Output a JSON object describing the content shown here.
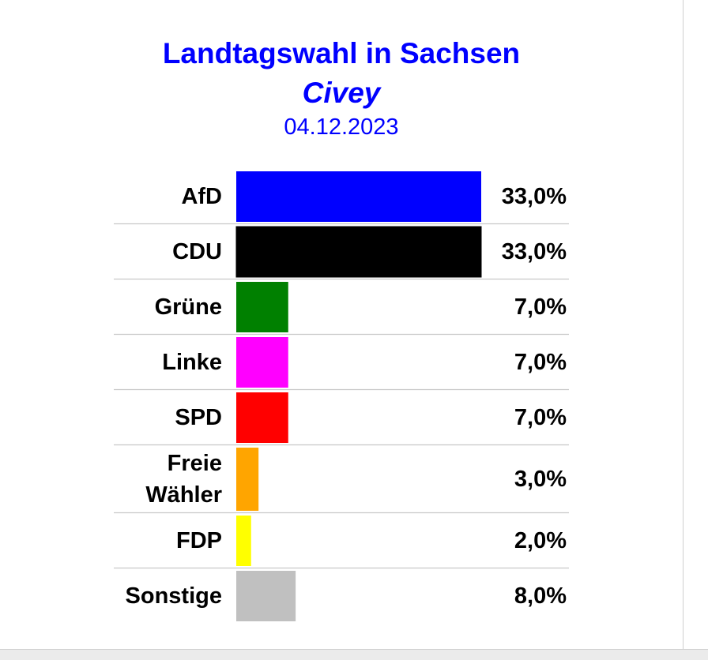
{
  "header": {
    "title": "Landtagswahl in Sachsen",
    "subtitle": "Civey",
    "date": "04.12.2023"
  },
  "chart_data": {
    "type": "bar",
    "orientation": "horizontal",
    "title": "Landtagswahl in Sachsen",
    "subtitle": "Civey",
    "date": "04.12.2023",
    "categories": [
      "AfD",
      "CDU",
      "Grüne",
      "Linke",
      "SPD",
      "Freie Wähler",
      "FDP",
      "Sonstige"
    ],
    "category_lines": [
      [
        "AfD"
      ],
      [
        "CDU"
      ],
      [
        "Grüne"
      ],
      [
        "Linke"
      ],
      [
        "SPD"
      ],
      [
        "Freie",
        "Wähler"
      ],
      [
        "FDP"
      ],
      [
        "Sonstige"
      ]
    ],
    "values": [
      33.0,
      33.0,
      7.0,
      7.0,
      7.0,
      3.0,
      2.0,
      8.0
    ],
    "value_labels": [
      "33,0%",
      "33,0%",
      "7,0%",
      "7,0%",
      "7,0%",
      "3,0%",
      "2,0%",
      "8,0%"
    ],
    "colors": [
      "#0000ff",
      "#000000",
      "#008000",
      "#ff00ff",
      "#ff0000",
      "#ffa500",
      "#ffff00",
      "#c0c0c0"
    ],
    "xlim": [
      0,
      33
    ],
    "grid": false,
    "legend": "none"
  }
}
